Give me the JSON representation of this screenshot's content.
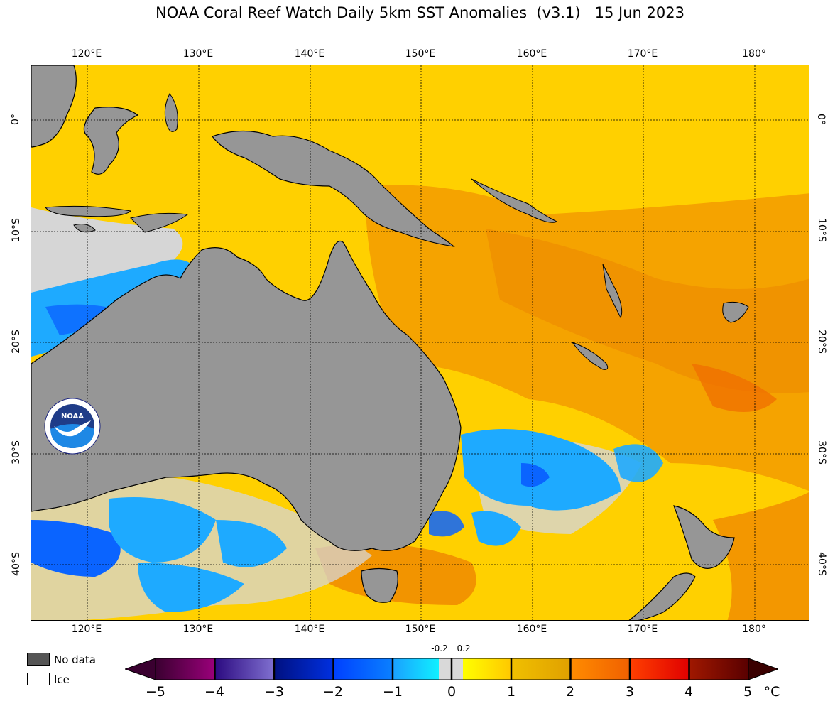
{
  "title": "NOAA Coral Reef Watch Daily 5km SST Anomalies  (v3.1)   15 Jun 2023",
  "map": {
    "lon_labels": [
      "120°E",
      "130°E",
      "140°E",
      "150°E",
      "160°E",
      "170°E",
      "180°"
    ],
    "lat_labels": [
      "0°",
      "10°S",
      "20°S",
      "30°S",
      "40°S"
    ],
    "colors": {
      "land": "#969696",
      "ocean_warm": "#ffd400",
      "ocean_hot": "#f5a000",
      "cool": "#1eaaff",
      "cold": "#0a64ff",
      "neutral": "#d9d9d9"
    }
  },
  "legend": {
    "no_data_label": "No data",
    "ice_label": "Ice",
    "no_data_color": "#555555",
    "ice_color": "#ffffff"
  },
  "colorbar": {
    "ticks": [
      "−5",
      "−4",
      "−3",
      "−2",
      "−1",
      "0",
      "1",
      "2",
      "3",
      "4",
      "5"
    ],
    "unit": "°C",
    "small_left": "-0.2",
    "small_right": "0.2"
  },
  "logo": {
    "text": "NOAA"
  }
}
